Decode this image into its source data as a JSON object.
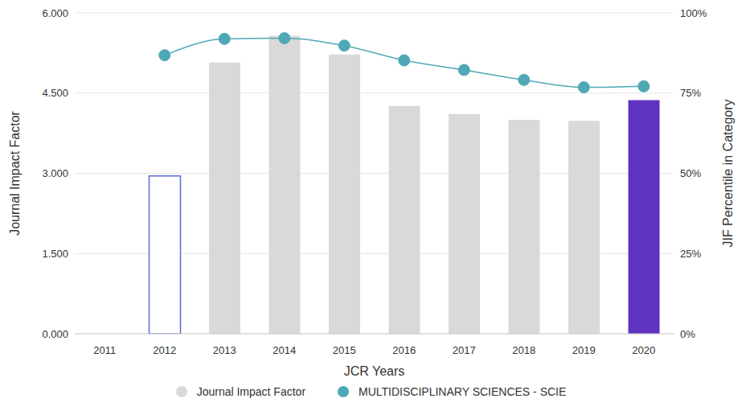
{
  "chart_data": {
    "type": "bar",
    "categories": [
      "2011",
      "2012",
      "2013",
      "2014",
      "2015",
      "2016",
      "2017",
      "2018",
      "2019",
      "2020"
    ],
    "x_label": "JCR Years",
    "y_label": "Journal Impact Factor",
    "y2_label": "JIF Percentile in Category",
    "series": [
      {
        "name": "Journal Impact Factor",
        "type": "bar",
        "color": "#d9d9d9",
        "colors": [
          "#d9d9d9",
          "#ffffff",
          "#d9d9d9",
          "#d9d9d9",
          "#d9d9d9",
          "#d9d9d9",
          "#d9d9d9",
          "#d9d9d9",
          "#d9d9d9",
          "#6032c0"
        ],
        "values": [
          null,
          2.95,
          5.07,
          5.57,
          5.22,
          4.26,
          4.11,
          4.0,
          3.98,
          4.37
        ]
      },
      {
        "name": "MULTIDISCIPLINARY SCIENCES - SCIE",
        "type": "line",
        "axis": "y2",
        "color": "#4ea8b5",
        "marker": "circle",
        "values": [
          null,
          86.8,
          91.9,
          92.1,
          89.8,
          85.2,
          82.2,
          79.1,
          76.8,
          77.1
        ]
      }
    ],
    "ylim": [
      0,
      6
    ],
    "yticks": [
      {
        "value": 0,
        "label": "0.000"
      },
      {
        "value": 1.5,
        "label": "1.500"
      },
      {
        "value": 3,
        "label": "3.000"
      },
      {
        "value": 4.5,
        "label": "4.500"
      },
      {
        "value": 6,
        "label": "6.000"
      }
    ],
    "y2lim": [
      0,
      100
    ],
    "y2ticks": [
      {
        "value": 0,
        "label": "0%"
      },
      {
        "value": 25,
        "label": "25%"
      },
      {
        "value": 50,
        "label": "50%"
      },
      {
        "value": 75,
        "label": "75%"
      },
      {
        "value": 100,
        "label": "100%"
      }
    ],
    "grid": true,
    "legend": "bottom"
  }
}
